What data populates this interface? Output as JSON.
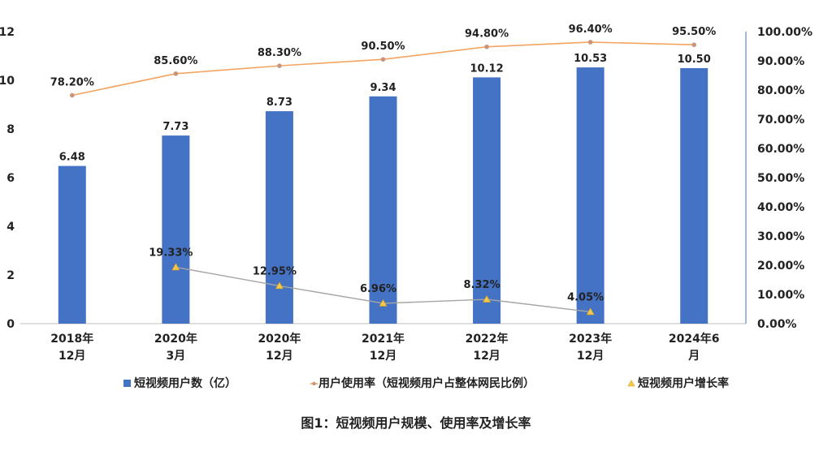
{
  "chart_data": {
    "type": "bar",
    "categories": [
      [
        "2018年",
        "12月"
      ],
      [
        "2020年",
        "3月"
      ],
      [
        "2020年",
        "12月"
      ],
      [
        "2021年",
        "12月"
      ],
      [
        "2022年",
        "12月"
      ],
      [
        "2023年",
        "12月"
      ],
      [
        "2024年6",
        "月"
      ]
    ],
    "series": [
      {
        "name": "短视频用户数（亿）",
        "type": "bar",
        "axis": "left",
        "color": "#4472C4",
        "values": [
          6.48,
          7.73,
          8.73,
          9.34,
          10.12,
          10.53,
          10.5
        ],
        "labels": [
          "6.48",
          "7.73",
          "8.73",
          "9.34",
          "10.12",
          "10.53",
          "10.50"
        ]
      },
      {
        "name": "用户使用率（短视频用户占整体网民比例）",
        "type": "line",
        "axis": "right",
        "color": "#F4A460",
        "values": [
          78.2,
          85.6,
          88.3,
          90.5,
          94.8,
          96.4,
          95.5
        ],
        "labels": [
          "78.20%",
          "85.60%",
          "88.30%",
          "90.50%",
          "94.80%",
          "96.40%",
          "95.50%"
        ]
      },
      {
        "name": "短视频用户增长率",
        "type": "line",
        "axis": "right",
        "color": "#A5A5A5",
        "values": [
          null,
          19.33,
          12.95,
          6.96,
          8.32,
          4.05,
          null
        ],
        "labels": [
          null,
          "19.33%",
          "12.95%",
          "6.96%",
          "8.32%",
          "4.05%",
          null
        ]
      }
    ],
    "y_left": {
      "min": 0,
      "max": 12,
      "ticks": [
        "0",
        "2",
        "4",
        "6",
        "8",
        "10",
        "12"
      ]
    },
    "y_right": {
      "min": 0,
      "max": 100,
      "ticks": [
        "0.00%",
        "10.00%",
        "20.00%",
        "30.00%",
        "40.00%",
        "50.00%",
        "60.00%",
        "70.00%",
        "80.00%",
        "90.00%",
        "100.00%"
      ]
    },
    "legend_position": "bottom",
    "grid": false,
    "title": "图1：短视频用户规模、使用率及增长率"
  }
}
